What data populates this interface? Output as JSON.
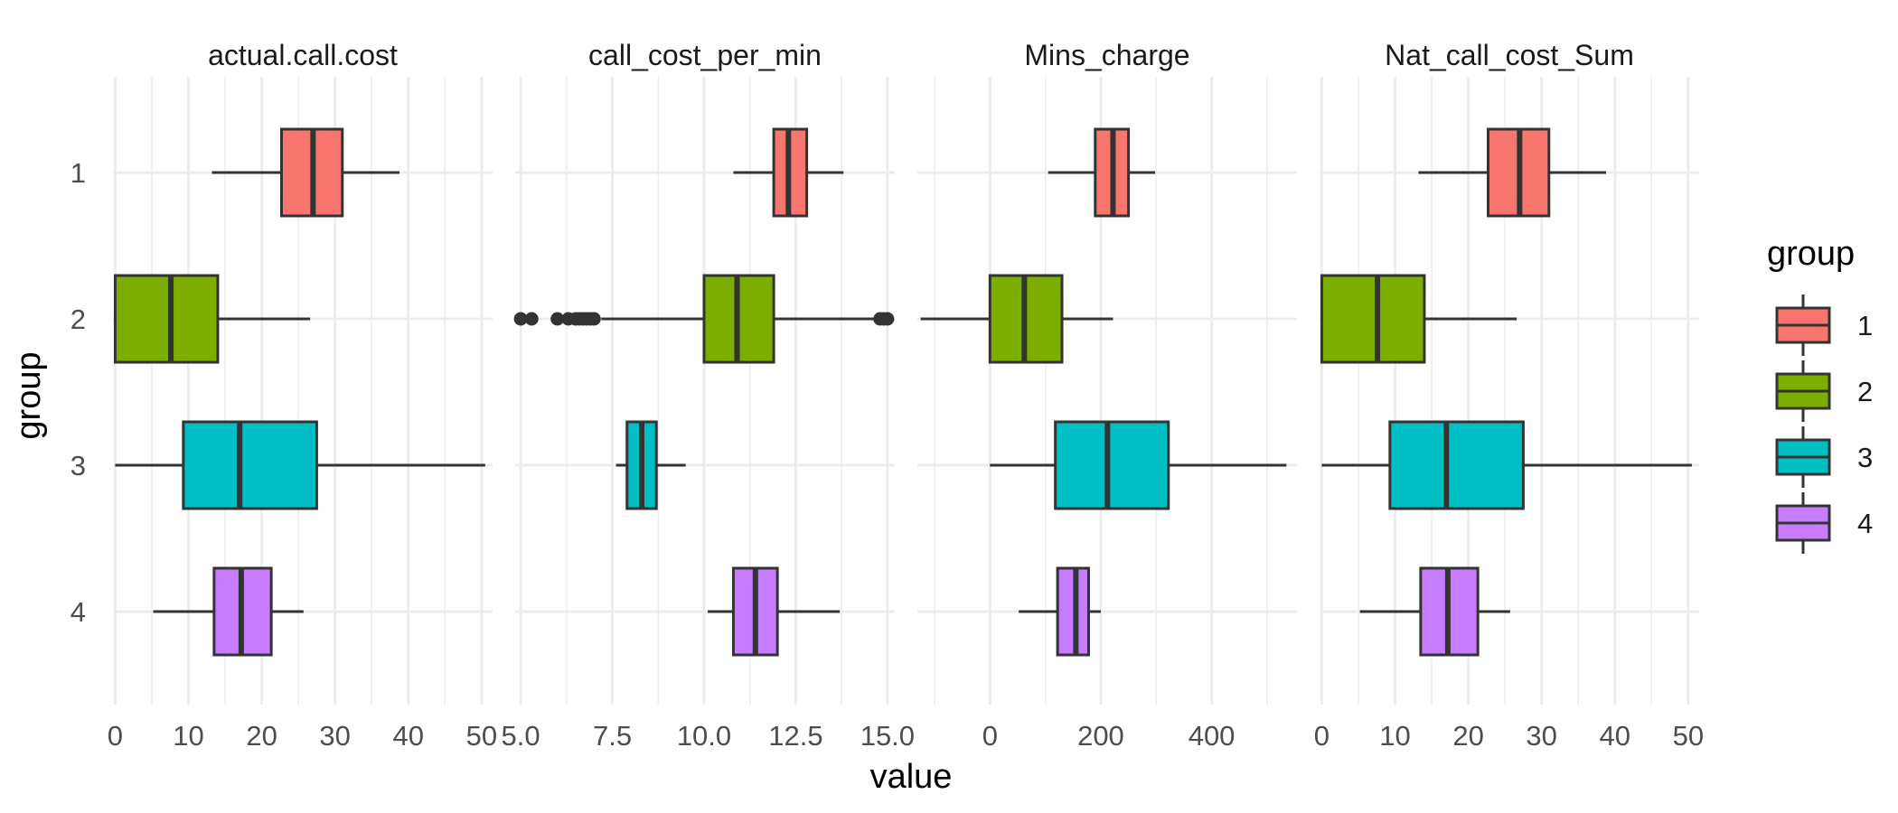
{
  "chart_data": {
    "type": "boxplot",
    "orientation": "horizontal",
    "xlabel": "value",
    "ylabel": "group",
    "group_labels": [
      "1",
      "2",
      "3",
      "4"
    ],
    "legend": {
      "title": "group",
      "position": "right",
      "entries": [
        {
          "label": "1",
          "color": "#F8766D"
        },
        {
          "label": "2",
          "color": "#7CAE00"
        },
        {
          "label": "3",
          "color": "#00BFC4"
        },
        {
          "label": "4",
          "color": "#C77CFF"
        }
      ]
    },
    "grid": true,
    "facets": [
      {
        "title": "actual.call.cost",
        "xlim": [
          -0.3,
          51.5
        ],
        "ticks": [
          0,
          10,
          20,
          30,
          40,
          50
        ],
        "tick_labels": [
          "0",
          "10",
          "20",
          "30",
          "40",
          "50"
        ],
        "minor": [
          5,
          15,
          25,
          35,
          45
        ],
        "boxes": [
          {
            "group": "1",
            "min": 13.2,
            "q1": 22.7,
            "median": 27.0,
            "q3": 31.0,
            "max": 38.8,
            "outliers": []
          },
          {
            "group": "2",
            "min": 0.0,
            "q1": 0.0,
            "median": 7.6,
            "q3": 14.0,
            "max": 26.6,
            "outliers": []
          },
          {
            "group": "3",
            "min": 0.0,
            "q1": 9.3,
            "median": 17.0,
            "q3": 27.5,
            "max": 50.5,
            "outliers": []
          },
          {
            "group": "4",
            "min": 5.2,
            "q1": 13.5,
            "median": 17.2,
            "q3": 21.3,
            "max": 25.7,
            "outliers": []
          }
        ]
      },
      {
        "title": "call_cost_per_min",
        "xlim": [
          4.85,
          15.2
        ],
        "ticks": [
          5.0,
          7.5,
          10.0,
          12.5,
          15.0
        ],
        "tick_labels": [
          "5.0",
          "7.5",
          "10.0",
          "12.5",
          "15.0"
        ],
        "minor": [
          6.25,
          8.75,
          11.25,
          13.75
        ],
        "boxes": [
          {
            "group": "1",
            "min": 10.8,
            "q1": 11.9,
            "median": 12.3,
            "q3": 12.8,
            "max": 13.8,
            "outliers": []
          },
          {
            "group": "2",
            "min": 7.2,
            "q1": 10.0,
            "median": 10.9,
            "q3": 11.9,
            "max": 14.7,
            "outliers": [
              5.0,
              5.3,
              6.0,
              6.3,
              6.5,
              6.6,
              6.7,
              6.8,
              6.9,
              7.0,
              14.8,
              14.9,
              15.0
            ]
          },
          {
            "group": "3",
            "min": 7.6,
            "q1": 7.9,
            "median": 8.3,
            "q3": 8.7,
            "max": 9.5,
            "outliers": []
          },
          {
            "group": "4",
            "min": 10.1,
            "q1": 10.8,
            "median": 11.4,
            "q3": 12.0,
            "max": 13.7,
            "outliers": []
          }
        ]
      },
      {
        "title": "Mins_charge",
        "xlim": [
          -131,
          554
        ],
        "ticks": [
          0,
          200,
          400
        ],
        "tick_labels": [
          "0",
          "200",
          "400"
        ],
        "minor": [
          -100,
          100,
          300,
          500
        ],
        "boxes": [
          {
            "group": "1",
            "min": 105,
            "q1": 190,
            "median": 222,
            "q3": 250,
            "max": 298,
            "outliers": []
          },
          {
            "group": "2",
            "min": -125,
            "q1": 0,
            "median": 62,
            "q3": 130,
            "max": 222,
            "outliers": []
          },
          {
            "group": "3",
            "min": 0,
            "q1": 118,
            "median": 212,
            "q3": 322,
            "max": 535,
            "outliers": []
          },
          {
            "group": "4",
            "min": 52,
            "q1": 122,
            "median": 155,
            "q3": 178,
            "max": 200,
            "outliers": []
          }
        ]
      },
      {
        "title": "Nat_call_cost_Sum",
        "xlim": [
          -0.3,
          51.5
        ],
        "ticks": [
          0,
          10,
          20,
          30,
          40,
          50
        ],
        "tick_labels": [
          "0",
          "10",
          "20",
          "30",
          "40",
          "50"
        ],
        "minor": [
          5,
          15,
          25,
          35,
          45
        ],
        "boxes": [
          {
            "group": "1",
            "min": 13.2,
            "q1": 22.7,
            "median": 27.0,
            "q3": 31.0,
            "max": 38.8,
            "outliers": []
          },
          {
            "group": "2",
            "min": 0.0,
            "q1": 0.0,
            "median": 7.6,
            "q3": 14.0,
            "max": 26.6,
            "outliers": []
          },
          {
            "group": "3",
            "min": 0.0,
            "q1": 9.3,
            "median": 17.0,
            "q3": 27.5,
            "max": 50.5,
            "outliers": []
          },
          {
            "group": "4",
            "min": 5.2,
            "q1": 13.5,
            "median": 17.2,
            "q3": 21.3,
            "max": 25.7,
            "outliers": []
          }
        ]
      }
    ]
  }
}
